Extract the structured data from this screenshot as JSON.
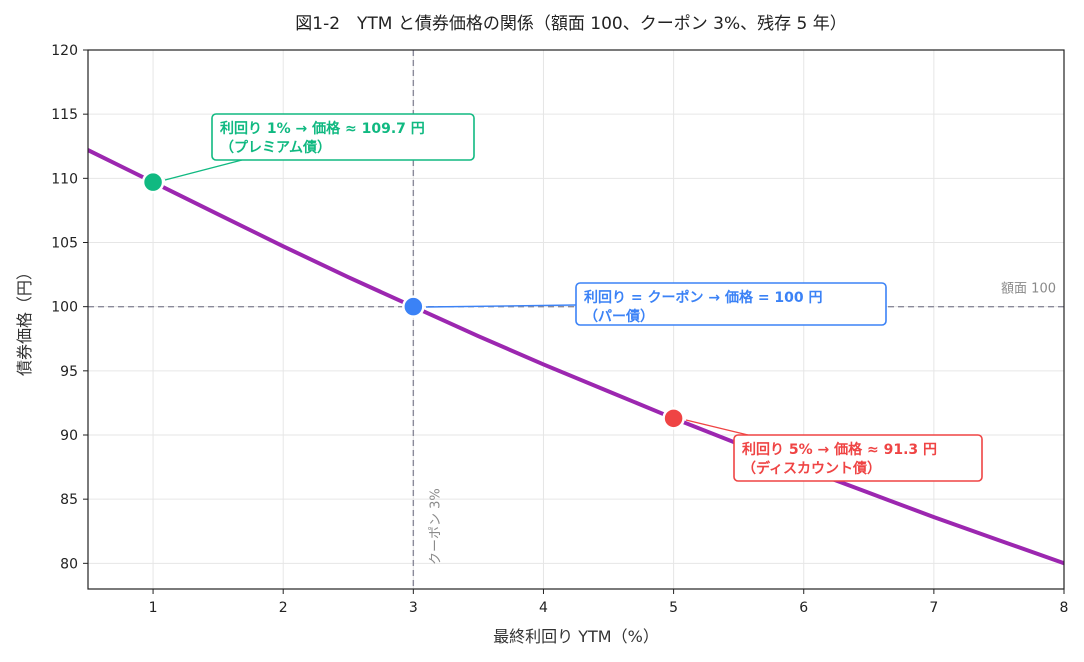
{
  "chart_data": {
    "type": "line",
    "title": "図1-2　YTM と債券価格の関係（額面 100、クーポン 3%、残存 5 年）",
    "xlabel": "最終利回り YTM（%）",
    "ylabel": "債券価格（円）",
    "xlim": [
      0.5,
      8
    ],
    "ylim": [
      78,
      120
    ],
    "xticks": [
      1,
      2,
      3,
      4,
      5,
      6,
      7,
      8
    ],
    "yticks": [
      80,
      85,
      90,
      95,
      100,
      105,
      110,
      115,
      120
    ],
    "grid": true,
    "series": [
      {
        "color": "#9c27b0",
        "x": [
          0.5,
          1,
          1.5,
          2,
          2.5,
          3,
          3.5,
          4,
          4.5,
          5,
          5.5,
          6,
          6.5,
          7,
          7.5,
          8
        ],
        "y": [
          112.2,
          109.7,
          107.2,
          104.7,
          102.3,
          100.0,
          97.7,
          95.5,
          93.4,
          91.3,
          89.3,
          87.4,
          85.5,
          83.6,
          81.8,
          80.0
        ]
      }
    ],
    "reference_lines": {
      "horizontal": {
        "y": 100,
        "label": "額面 100",
        "color": "#8a8a9a"
      },
      "vertical": {
        "x": 3,
        "label": "クーポン 3%",
        "color": "#8a8a9a"
      }
    },
    "points": [
      {
        "x": 1,
        "y": 109.7,
        "color": "#10b981",
        "line1": "利回り 1% → 価格 ≈ 109.7 円",
        "line2": "（プレミアム債）"
      },
      {
        "x": 3,
        "y": 100.0,
        "color": "#3b82f6",
        "line1": "利回り = クーポン → 価格 = 100 円",
        "line2": "（パー債）"
      },
      {
        "x": 5,
        "y": 91.3,
        "color": "#ef4444",
        "line1": "利回り 5% → 価格 ≈ 91.3 円",
        "line2": "（ディスカウント債）"
      }
    ]
  }
}
